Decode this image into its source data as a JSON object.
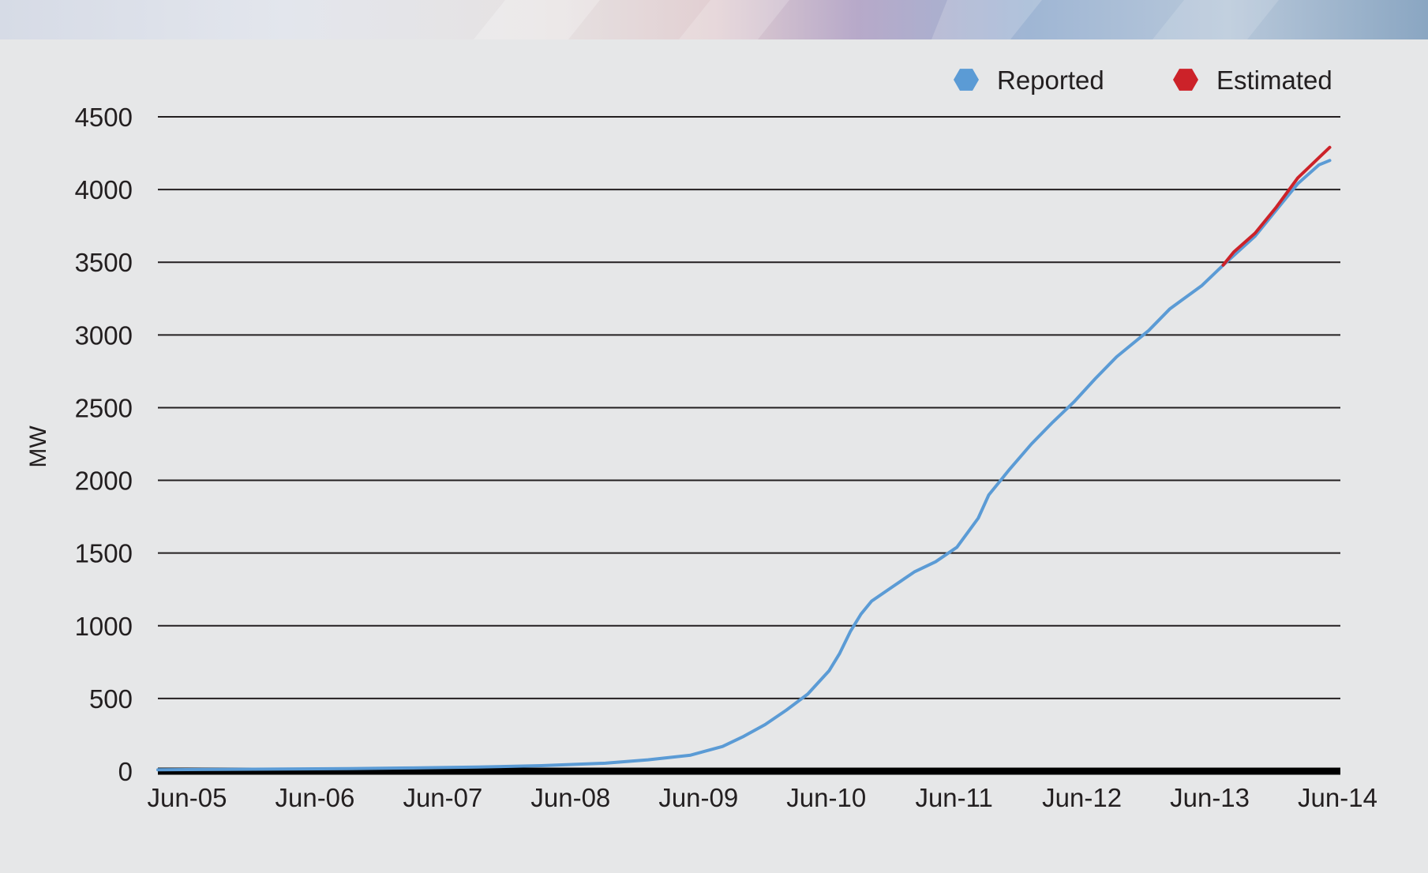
{
  "chart_data": {
    "type": "line",
    "title": "",
    "xlabel": "",
    "ylabel": "MW",
    "ylim": [
      0,
      4500
    ],
    "y_ticks": [
      "0",
      "500",
      "1000",
      "1500",
      "2000",
      "2500",
      "3000",
      "3500",
      "4000",
      "4500"
    ],
    "x_ticks": [
      "Jun-05",
      "Jun-06",
      "Jun-07",
      "Jun-08",
      "Jun-09",
      "Jun-10",
      "Jun-11",
      "Jun-12",
      "Jun-13",
      "Jun-14"
    ],
    "grid": "horizontal",
    "legend_position": "top-right",
    "series": [
      {
        "name": "Reported",
        "color": "#5b9bd5",
        "marker": "hexagon",
        "points": [
          [
            "Jun-05",
            10
          ],
          [
            "Dec-05",
            12
          ],
          [
            "Jun-06",
            15
          ],
          [
            "Dec-06",
            18
          ],
          [
            "Jun-07",
            22
          ],
          [
            "Dec-07",
            28
          ],
          [
            "Jun-08",
            38
          ],
          [
            "Dec-08",
            55
          ],
          [
            "Apr-09",
            78
          ],
          [
            "Aug-09",
            110
          ],
          [
            "Nov-09",
            170
          ],
          [
            "Jan-10",
            240
          ],
          [
            "Mar-10",
            320
          ],
          [
            "May-10",
            420
          ],
          [
            "Jul-10",
            530
          ],
          [
            "Sep-10",
            690
          ],
          [
            "Oct-10",
            810
          ],
          [
            "Nov-10",
            960
          ],
          [
            "Dec-10",
            1080
          ],
          [
            "Jan-11",
            1170
          ],
          [
            "Mar-11",
            1270
          ],
          [
            "May-11",
            1370
          ],
          [
            "Jul-11",
            1440
          ],
          [
            "Sep-11",
            1540
          ],
          [
            "Oct-11",
            1640
          ],
          [
            "Nov-11",
            1740
          ],
          [
            "Dec-11",
            1900
          ],
          [
            "Feb-12",
            2080
          ],
          [
            "Apr-12",
            2250
          ],
          [
            "Jun-12",
            2400
          ],
          [
            "Aug-12",
            2540
          ],
          [
            "Oct-12",
            2700
          ],
          [
            "Dec-12",
            2850
          ],
          [
            "Mar-13",
            3030
          ],
          [
            "May-13",
            3180
          ],
          [
            "Aug-13",
            3340
          ],
          [
            "Oct-13",
            3480
          ],
          [
            "Jan-14",
            3680
          ],
          [
            "Mar-14",
            3860
          ],
          [
            "May-14",
            4040
          ],
          [
            "Jul-14",
            4170
          ],
          [
            "Aug-14",
            4200
          ]
        ]
      },
      {
        "name": "Estimated",
        "color": "#cc2229",
        "marker": "hexagon",
        "points": [
          [
            "Oct-13",
            3480
          ],
          [
            "Nov-13",
            3570
          ],
          [
            "Jan-14",
            3700
          ],
          [
            "Mar-14",
            3880
          ],
          [
            "May-14",
            4080
          ],
          [
            "Jul-14",
            4220
          ],
          [
            "Aug-14",
            4290
          ]
        ]
      }
    ]
  }
}
